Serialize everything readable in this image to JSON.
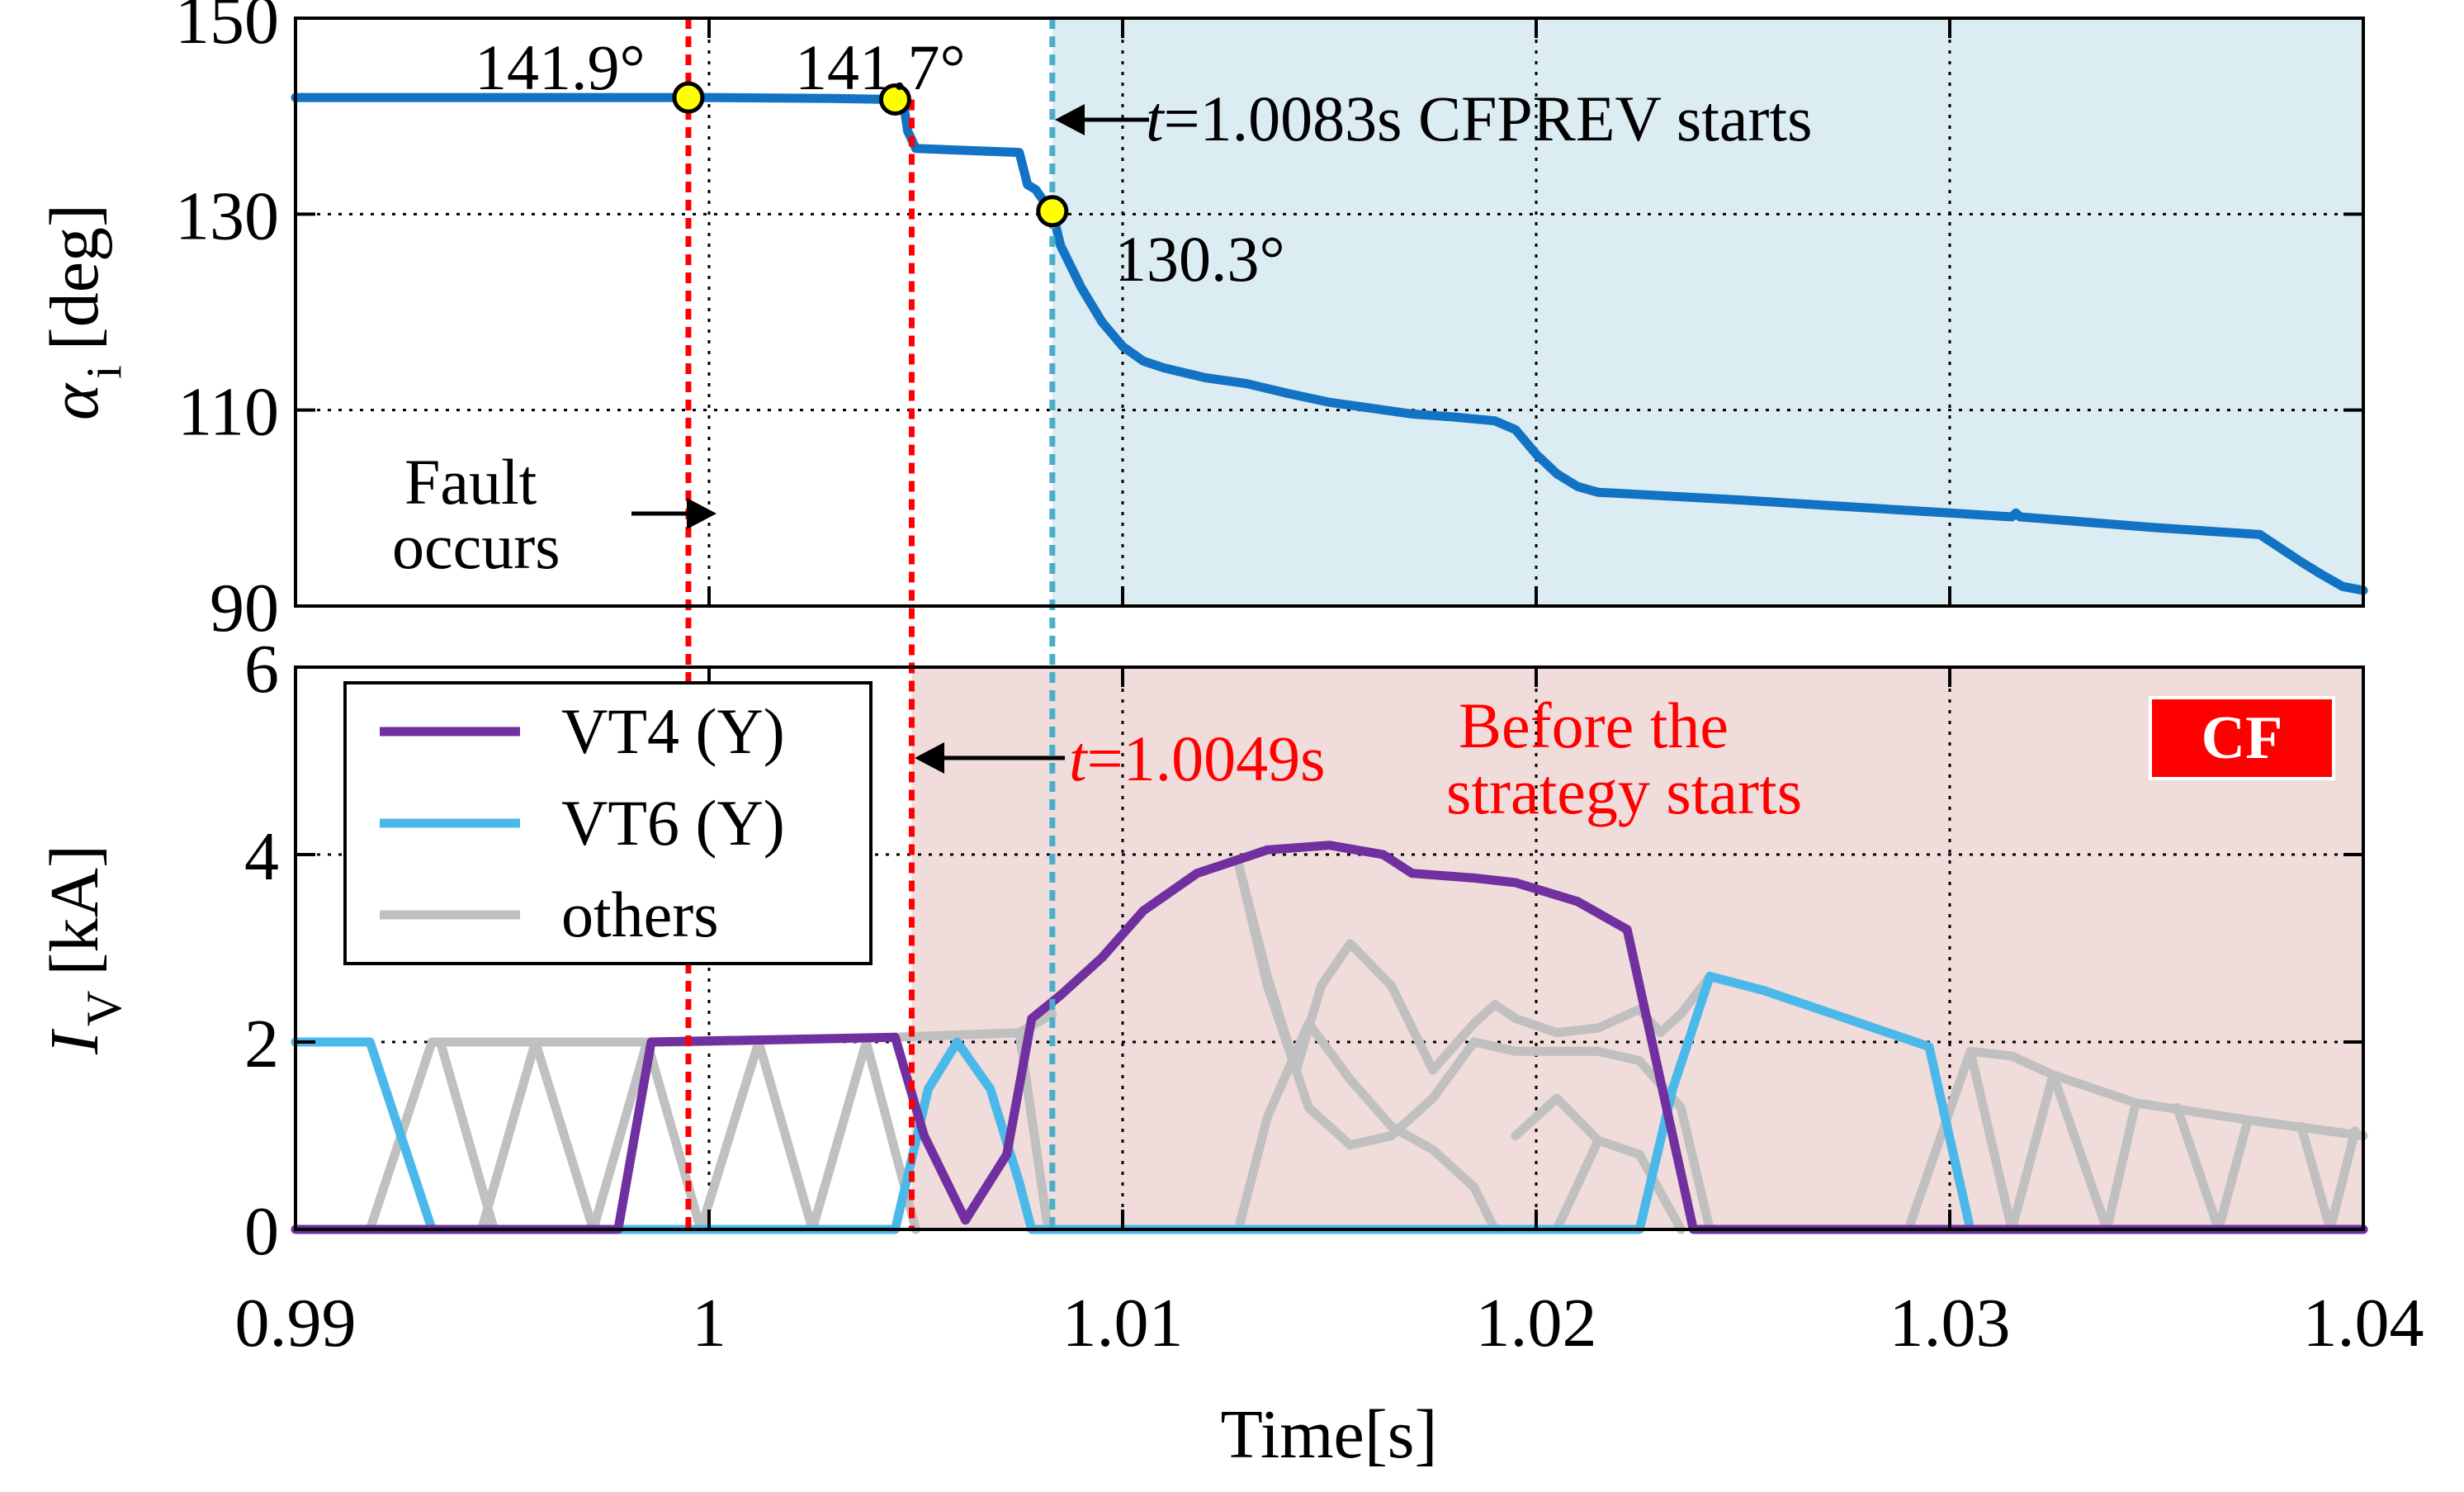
{
  "colors": {
    "alpha_line": "#1273c4",
    "vt4": "#7030a0",
    "vt6": "#4ab9ea",
    "others": "#c0c0c0",
    "fault_marker": "#ff0000",
    "strategy_marker": "#4aaecb",
    "top_region": "#dbecf3",
    "bottom_region": "#f0dcda",
    "point_fill": "#ffff00",
    "cf_badge": "#ff0000"
  },
  "chart_data": [
    {
      "type": "line",
      "panel": "top",
      "ylabel_main": "α",
      "ylabel_sub": "i",
      "ylabel_unit": "[deg]",
      "ylim": [
        90,
        150
      ],
      "yticks": [
        90,
        110,
        130,
        150
      ],
      "xlim": [
        0.99,
        1.04
      ],
      "grid": true,
      "series": [
        {
          "name": "alpha_i",
          "x": [
            0.99,
            1.0,
            1.003,
            1.0045,
            1.0047,
            1.0048,
            1.005,
            1.0075,
            1.0077,
            1.0079,
            1.0081,
            1.0083,
            1.0085,
            1.009,
            1.0095,
            1.01,
            1.0105,
            1.011,
            1.012,
            1.013,
            1.014,
            1.015,
            1.016,
            1.017,
            1.018,
            1.019,
            1.0195,
            1.02,
            1.0205,
            1.021,
            1.0215,
            1.022,
            1.025,
            1.03,
            1.0315,
            1.0316,
            1.0317,
            1.032,
            1.035,
            1.0375,
            1.0385,
            1.039,
            1.0395,
            1.04
          ],
          "y": [
            141.9,
            141.9,
            141.8,
            141.7,
            141.4,
            138.5,
            136.7,
            136.3,
            133.0,
            132.5,
            131.3,
            130.3,
            126.8,
            122.5,
            119.0,
            116.5,
            115.0,
            114.3,
            113.3,
            112.7,
            111.7,
            110.8,
            110.2,
            109.6,
            109.3,
            108.9,
            108.0,
            105.5,
            103.5,
            102.2,
            101.6,
            101.5,
            100.8,
            99.5,
            99.1,
            99.5,
            99.1,
            99.0,
            98.0,
            97.3,
            94.5,
            93.2,
            92.0,
            91.6
          ]
        }
      ],
      "points": [
        {
          "x": 0.9995,
          "y": 141.9,
          "label": "141.9°"
        },
        {
          "x": 1.0045,
          "y": 141.7,
          "label": "141.7°"
        },
        {
          "x": 1.0083,
          "y": 130.3,
          "label": "130.3°"
        }
      ],
      "annotations": {
        "start_t_italic": "t",
        "start_rest": "=1.0083s  CFPREV starts",
        "fault_line1": "Fault",
        "fault_line2": "occurs"
      },
      "region": {
        "x_start": 1.0083,
        "x_end": 1.04
      }
    },
    {
      "type": "line",
      "panel": "bottom",
      "ylabel_main": "I",
      "ylabel_sub": "V",
      "ylabel_unit": "[kA]",
      "xlabel": "Time[s]",
      "ylim": [
        0,
        6
      ],
      "yticks": [
        0,
        2,
        4,
        6
      ],
      "xlim": [
        0.99,
        1.04
      ],
      "xticks": [
        0.99,
        1.0,
        1.01,
        1.02,
        1.03,
        1.04
      ],
      "xtick_labels": [
        "0.99",
        "1",
        "1.01",
        "1.02",
        "1.03",
        "1.04"
      ],
      "grid": true,
      "legend": {
        "placement": "top-left",
        "entries": [
          "VT4 (Y)",
          "VT6 (Y)",
          "others"
        ]
      },
      "series": [
        {
          "name": "others",
          "segments": [
            [
              [
                0.9918,
                0.0
              ],
              [
                0.9933,
                2.0
              ],
              [
                0.9995,
                2.0
              ],
              [
                1.0045,
                2.05
              ],
              [
                1.0075,
                2.1
              ],
              [
                1.0083,
                2.3
              ]
            ],
            [
              [
                0.9935,
                2.0
              ],
              [
                0.9948,
                0.0
              ]
            ],
            [
              [
                0.9945,
                0.0
              ],
              [
                0.9958,
                2.0
              ]
            ],
            [
              [
                0.9958,
                2.0
              ],
              [
                0.9972,
                0.0
              ]
            ],
            [
              [
                0.9972,
                0.0
              ],
              [
                0.9985,
                2.0
              ]
            ],
            [
              [
                0.9985,
                2.0
              ],
              [
                0.9998,
                0.0
              ]
            ],
            [
              [
                0.9998,
                0.0
              ],
              [
                1.0012,
                2.0
              ]
            ],
            [
              [
                1.0012,
                2.0
              ],
              [
                1.0025,
                0.0
              ]
            ],
            [
              [
                1.0025,
                0.0
              ],
              [
                1.0038,
                2.0
              ]
            ],
            [
              [
                1.0038,
                2.0
              ],
              [
                1.005,
                0.0
              ]
            ],
            [
              [
                1.0075,
                2.1
              ],
              [
                1.0082,
                0.0
              ],
              [
                1.0082,
                0.0
              ]
            ],
            [
              [
                1.0128,
                0.0
              ],
              [
                1.0135,
                1.2
              ],
              [
                1.0145,
                2.2
              ],
              [
                1.0155,
                1.6
              ],
              [
                1.0165,
                1.1
              ],
              [
                1.0175,
                0.85
              ],
              [
                1.0185,
                0.45
              ],
              [
                1.019,
                0.0
              ]
            ],
            [
              [
                1.0128,
                3.9
              ],
              [
                1.0135,
                2.7
              ],
              [
                1.0142,
                1.7
              ],
              [
                1.0148,
                2.6
              ],
              [
                1.0155,
                3.05
              ],
              [
                1.0165,
                2.6
              ],
              [
                1.0175,
                1.7
              ],
              [
                1.0185,
                2.2
              ],
              [
                1.019,
                2.4
              ]
            ],
            [
              [
                1.0128,
                3.9
              ],
              [
                1.0135,
                2.6
              ],
              [
                1.0145,
                1.3
              ],
              [
                1.0155,
                0.9
              ],
              [
                1.0165,
                1.0
              ],
              [
                1.0175,
                1.4
              ],
              [
                1.0185,
                2.0
              ],
              [
                1.0195,
                1.9
              ]
            ],
            [
              [
                1.019,
                2.4
              ],
              [
                1.0195,
                2.25
              ],
              [
                1.0205,
                2.1
              ],
              [
                1.0215,
                2.15
              ],
              [
                1.0225,
                2.35
              ],
              [
                1.023,
                2.1
              ],
              [
                1.0235,
                2.3
              ],
              [
                1.0242,
                2.7
              ]
            ],
            [
              [
                1.0195,
                1.9
              ],
              [
                1.0215,
                1.9
              ],
              [
                1.0225,
                1.8
              ],
              [
                1.0235,
                1.3
              ],
              [
                1.0242,
                0.0
              ]
            ],
            [
              [
                1.0195,
                1.0
              ],
              [
                1.0205,
                1.4
              ],
              [
                1.0215,
                0.95
              ],
              [
                1.0225,
                0.8
              ],
              [
                1.0235,
                0.0
              ]
            ],
            [
              [
                1.0205,
                0.0
              ],
              [
                1.0215,
                0.95
              ]
            ],
            [
              [
                1.029,
                0.0
              ],
              [
                1.0305,
                1.9
              ],
              [
                1.0315,
                1.85
              ],
              [
                1.0325,
                1.65
              ],
              [
                1.0345,
                1.35
              ],
              [
                1.0375,
                1.15
              ],
              [
                1.04,
                1.0
              ]
            ],
            [
              [
                1.0305,
                1.9
              ],
              [
                1.0315,
                0.0
              ]
            ],
            [
              [
                1.0315,
                0.0
              ],
              [
                1.0325,
                1.65
              ]
            ],
            [
              [
                1.0325,
                1.65
              ],
              [
                1.0338,
                0.0
              ]
            ],
            [
              [
                1.0338,
                0.0
              ],
              [
                1.0345,
                1.35
              ]
            ],
            [
              [
                1.0355,
                1.3
              ],
              [
                1.0365,
                0.0
              ]
            ],
            [
              [
                1.0365,
                0.0
              ],
              [
                1.0372,
                1.15
              ]
            ],
            [
              [
                1.0385,
                1.1
              ],
              [
                1.0392,
                0.0
              ]
            ],
            [
              [
                1.0392,
                0.0
              ],
              [
                1.0398,
                1.05
              ]
            ]
          ]
        },
        {
          "name": "VT6 (Y)",
          "segments": [
            [
              [
                0.99,
                2.0
              ],
              [
                0.9918,
                2.0
              ],
              [
                0.9933,
                0.0
              ],
              [
                1.0045,
                0.0
              ],
              [
                1.0053,
                1.5
              ],
              [
                1.006,
                2.0
              ],
              [
                1.0068,
                1.5
              ],
              [
                1.0075,
                0.5
              ],
              [
                1.0078,
                0.0
              ],
              [
                1.0225,
                0.0
              ],
              [
                1.0233,
                1.5
              ],
              [
                1.0242,
                2.7
              ],
              [
                1.0255,
                2.55
              ],
              [
                1.0275,
                2.25
              ],
              [
                1.0295,
                1.95
              ],
              [
                1.0305,
                0.0
              ],
              [
                1.04,
                0.0
              ]
            ]
          ]
        },
        {
          "name": "VT4 (Y)",
          "segments": [
            [
              [
                0.99,
                0.0
              ],
              [
                0.9978,
                0.0
              ],
              [
                0.9986,
                2.0
              ],
              [
                1.0045,
                2.05
              ],
              [
                1.0052,
                1.0
              ],
              [
                1.0062,
                0.1
              ],
              [
                1.0072,
                0.8
              ],
              [
                1.0078,
                2.25
              ],
              [
                1.0085,
                2.5
              ],
              [
                1.0095,
                2.9
              ],
              [
                1.0105,
                3.4
              ],
              [
                1.0118,
                3.8
              ],
              [
                1.0135,
                4.05
              ],
              [
                1.015,
                4.1
              ],
              [
                1.0163,
                4.0
              ],
              [
                1.017,
                3.8
              ],
              [
                1.0185,
                3.75
              ],
              [
                1.0195,
                3.7
              ],
              [
                1.021,
                3.5
              ],
              [
                1.0222,
                3.2
              ],
              [
                1.0238,
                0.0
              ],
              [
                1.04,
                0.0
              ]
            ]
          ]
        }
      ],
      "annotations": {
        "fault_t_italic": "t",
        "fault_rest": "=1.0049s",
        "strategy_line1": "Before the",
        "strategy_line2": "strategy starts",
        "badge": "CF"
      },
      "region": {
        "x_start": 1.0049,
        "x_end": 1.04
      }
    }
  ],
  "markers": {
    "fault_x": 0.9995,
    "fault_cf_x": 1.0049,
    "strategy_x": 1.0083
  }
}
